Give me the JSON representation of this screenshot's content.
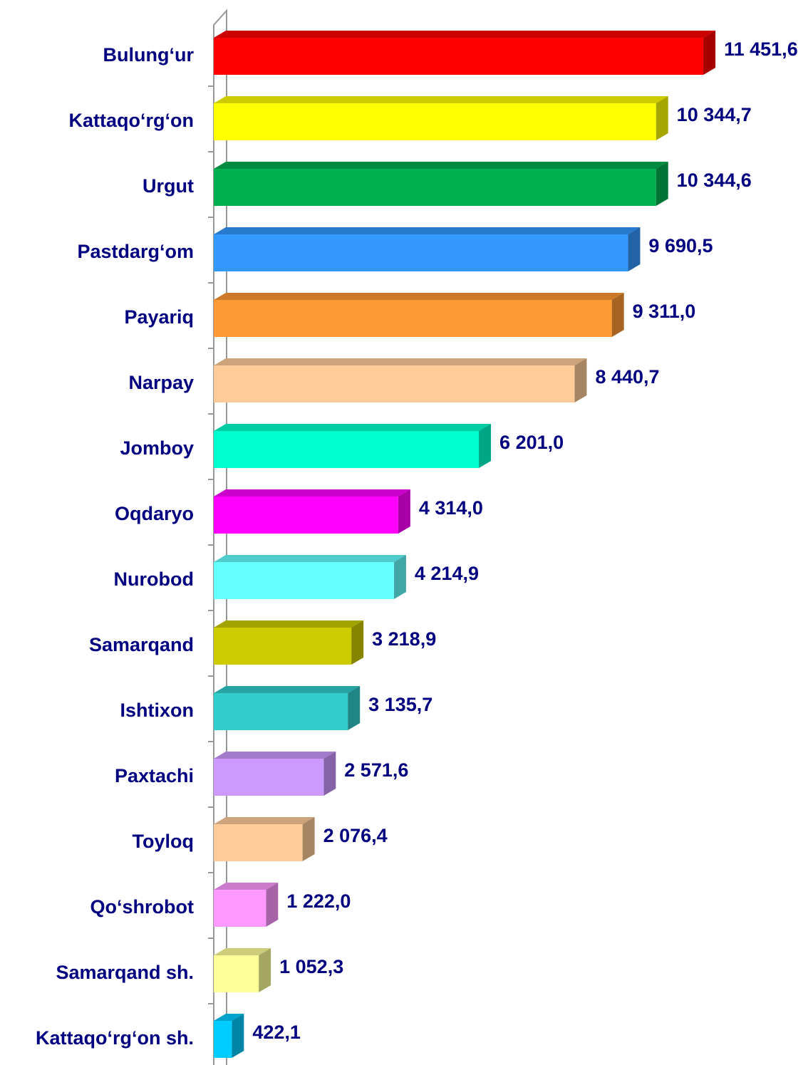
{
  "chart_data": {
    "type": "bar",
    "categories": [
      "Bulung‘ur",
      "Kattaqo‘rg‘on",
      "Urgut",
      "Pastdarg‘om",
      "Payariq",
      "Narpay",
      "Jomboy",
      "Oqdaryo",
      "Nurobod",
      "Samarqand",
      "Ishtixon",
      "Paxtachi",
      "Toyloq",
      "Qo‘shrobot",
      "Samarqand sh.",
      "Kattaqo‘rg‘on sh."
    ],
    "values": [
      11451.6,
      10344.7,
      10344.6,
      9690.5,
      9311.0,
      8440.7,
      6201.0,
      4314.0,
      4214.9,
      3218.9,
      3135.7,
      2571.6,
      2076.4,
      1222.0,
      1052.3,
      422.1
    ],
    "value_labels": [
      "11 451,6",
      "10 344,7",
      "10 344,6",
      "9 690,5",
      "9 311,0",
      "8 440,7",
      "6 201,0",
      "4 314,0",
      "4 214,9",
      "3 218,9",
      "3 135,7",
      "2 571,6",
      "2 076,4",
      "1 222,0",
      "1 052,3",
      "422,1"
    ],
    "colors": [
      "#ff0000",
      "#ffff00",
      "#00b050",
      "#3399ff",
      "#ff9933",
      "#ffcc99",
      "#00ffcc",
      "#ff00ff",
      "#66ffff",
      "#cccc00",
      "#33cccc",
      "#cc99ff",
      "#ffcc99",
      "#ff99ff",
      "#ffff99",
      "#00ccff"
    ]
  }
}
